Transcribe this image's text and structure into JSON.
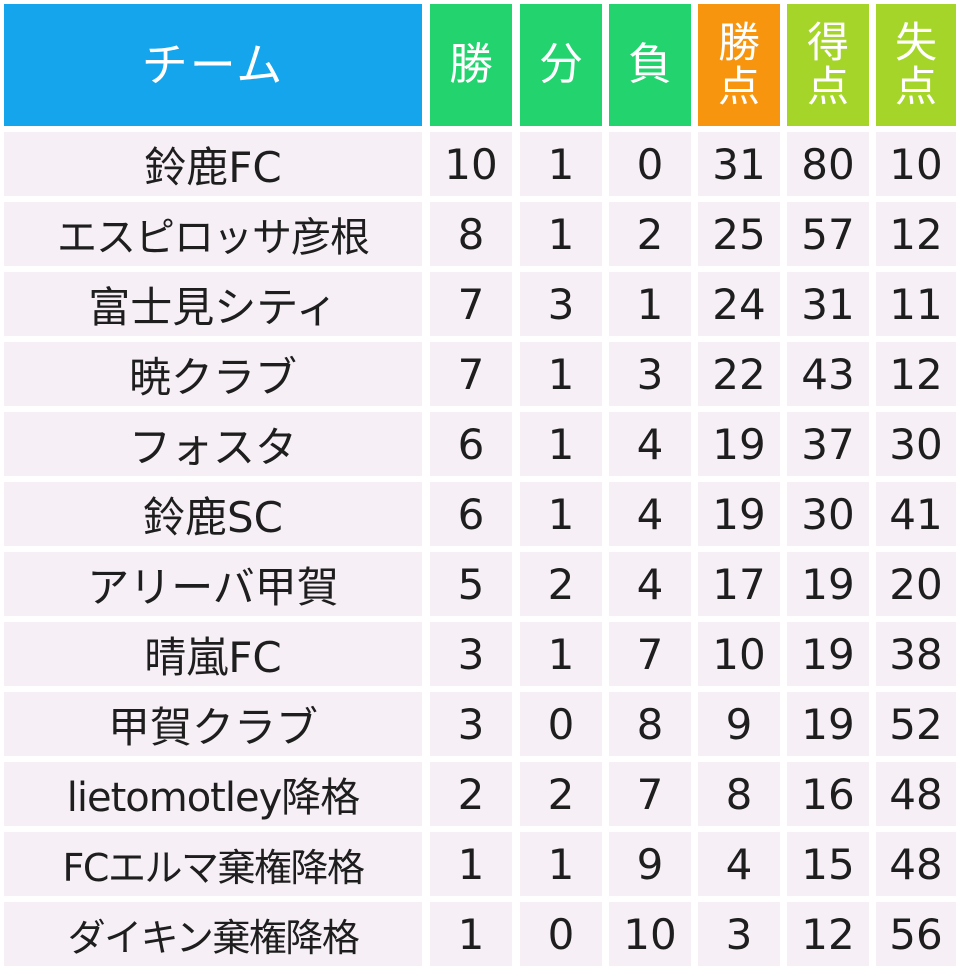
{
  "header": {
    "team": "チーム",
    "win_line1": "勝",
    "draw_line1": "分",
    "loss_line1": "負",
    "points_line1": "勝",
    "points_line2": "点",
    "goals_for_line1": "得",
    "goals_for_line2": "点",
    "goals_against_line1": "失",
    "goals_against_line2": "点"
  },
  "colors": {
    "team_header": "#14a5ec",
    "result_header": "#22d36e",
    "points_header": "#f7950f",
    "goals_header": "#a6d52a",
    "row_background": "#f6f0f6",
    "text": "#1e1e1e"
  },
  "rows": [
    {
      "team": "鈴鹿FC",
      "w": "10",
      "d": "1",
      "l": "0",
      "pts": "31",
      "gf": "80",
      "ga": "10"
    },
    {
      "team": "エスピロッサ彦根",
      "w": "8",
      "d": "1",
      "l": "2",
      "pts": "25",
      "gf": "57",
      "ga": "12"
    },
    {
      "team": "富士見シティ",
      "w": "7",
      "d": "3",
      "l": "1",
      "pts": "24",
      "gf": "31",
      "ga": "11"
    },
    {
      "team": "暁クラブ",
      "w": "7",
      "d": "1",
      "l": "3",
      "pts": "22",
      "gf": "43",
      "ga": "12"
    },
    {
      "team": "フォスタ",
      "w": "6",
      "d": "1",
      "l": "4",
      "pts": "19",
      "gf": "37",
      "ga": "30"
    },
    {
      "team": "鈴鹿SC",
      "w": "6",
      "d": "1",
      "l": "4",
      "pts": "19",
      "gf": "30",
      "ga": "41"
    },
    {
      "team": "アリーバ甲賀",
      "w": "5",
      "d": "2",
      "l": "4",
      "pts": "17",
      "gf": "19",
      "ga": "20"
    },
    {
      "team": "晴嵐FC",
      "w": "3",
      "d": "1",
      "l": "7",
      "pts": "10",
      "gf": "19",
      "ga": "38"
    },
    {
      "team": "甲賀クラブ",
      "w": "3",
      "d": "0",
      "l": "8",
      "pts": "9",
      "gf": "19",
      "ga": "52"
    },
    {
      "team": "lietomotley降格",
      "w": "2",
      "d": "2",
      "l": "7",
      "pts": "8",
      "gf": "16",
      "ga": "48"
    },
    {
      "team": "FCエルマ棄権降格",
      "w": "1",
      "d": "1",
      "l": "9",
      "pts": "4",
      "gf": "15",
      "ga": "48"
    },
    {
      "team": "ダイキン棄権降格",
      "w": "1",
      "d": "0",
      "l": "10",
      "pts": "3",
      "gf": "12",
      "ga": "56"
    }
  ]
}
